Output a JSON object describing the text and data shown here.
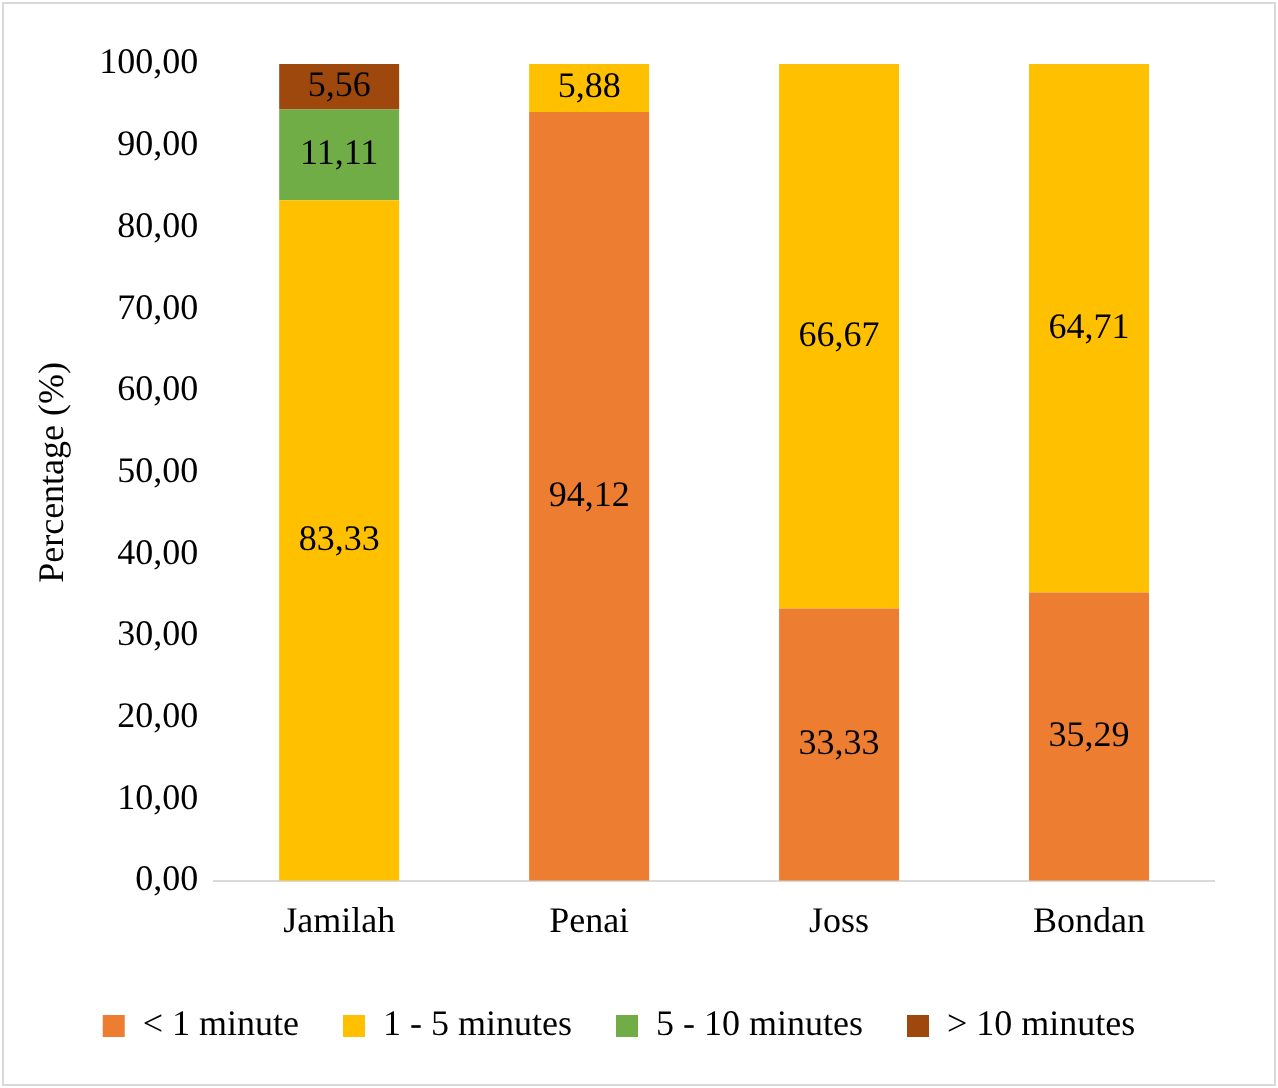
{
  "chart_data": {
    "type": "bar",
    "stacked": true,
    "ylabel": "Percentage (%)",
    "categories": [
      "Jamilah",
      "Penai",
      "Joss",
      "Bondan"
    ],
    "series": [
      {
        "name": "< 1 minute",
        "color": "#ed7d31",
        "values": [
          0,
          94.12,
          33.33,
          35.29
        ],
        "value_labels": [
          null,
          "94,12",
          "33,33",
          "35,29"
        ]
      },
      {
        "name": "1 - 5 minutes",
        "color": "#ffc000",
        "values": [
          83.33,
          5.88,
          66.67,
          64.71
        ],
        "value_labels": [
          "83,33",
          "5,88",
          "66,67",
          "64,71"
        ]
      },
      {
        "name": "5 - 10 minutes",
        "color": "#70ad47",
        "values": [
          11.11,
          0,
          0,
          0
        ],
        "value_labels": [
          "11,11",
          null,
          null,
          null
        ]
      },
      {
        "name": "> 10 minutes",
        "color": "#9e480e",
        "values": [
          5.56,
          0,
          0,
          0
        ],
        "value_labels": [
          "5,56",
          null,
          null,
          null
        ]
      }
    ],
    "ylim": [
      0,
      100
    ],
    "yticks": [
      {
        "value": 0,
        "label": "0,00"
      },
      {
        "value": 10,
        "label": "10,00"
      },
      {
        "value": 20,
        "label": "20,00"
      },
      {
        "value": 30,
        "label": "30,00"
      },
      {
        "value": 40,
        "label": "40,00"
      },
      {
        "value": 50,
        "label": "50,00"
      },
      {
        "value": 60,
        "label": "60,00"
      },
      {
        "value": 70,
        "label": "70,00"
      },
      {
        "value": 80,
        "label": "80,00"
      },
      {
        "value": 90,
        "label": "90,00"
      },
      {
        "value": 100,
        "label": "100,00"
      }
    ],
    "grid": false,
    "legend": "bottom"
  }
}
